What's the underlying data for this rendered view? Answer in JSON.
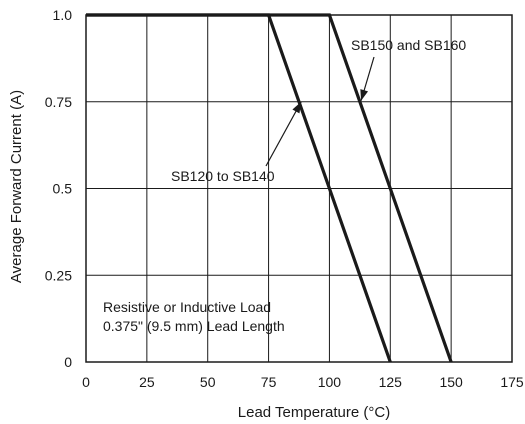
{
  "chart_data": {
    "type": "line",
    "title": "",
    "xlabel": "Lead Temperature (°C)",
    "ylabel": "Average Forward Current (A)",
    "xlim": [
      0,
      175
    ],
    "ylim": [
      0,
      1.0
    ],
    "grid": true,
    "x_ticks": [
      0,
      25,
      50,
      75,
      100,
      125,
      150,
      175
    ],
    "x_tick_labels": [
      "0",
      "25",
      "50",
      "75",
      "100",
      "125",
      "150",
      "175"
    ],
    "y_ticks": [
      0,
      0.25,
      0.5,
      0.75,
      1.0
    ],
    "y_tick_labels": [
      "0",
      "0.25",
      "0.5",
      "0.75",
      "1.0"
    ],
    "series": [
      {
        "name": "SB120 to SB140",
        "x": [
          0,
          75,
          125
        ],
        "y": [
          1.0,
          1.0,
          0
        ]
      },
      {
        "name": "SB150 and SB160",
        "x": [
          0,
          100,
          150
        ],
        "y": [
          1.0,
          1.0,
          0
        ]
      }
    ],
    "annotations": [
      {
        "text": "SB150 and SB160",
        "arrow_to": [
          113,
          0.75
        ]
      },
      {
        "text": "SB120 to SB140",
        "arrow_to": [
          88,
          0.75
        ]
      },
      {
        "text": "Resistive or Inductive Load"
      },
      {
        "text": "0.375\" (9.5 mm) Lead Length"
      }
    ]
  }
}
